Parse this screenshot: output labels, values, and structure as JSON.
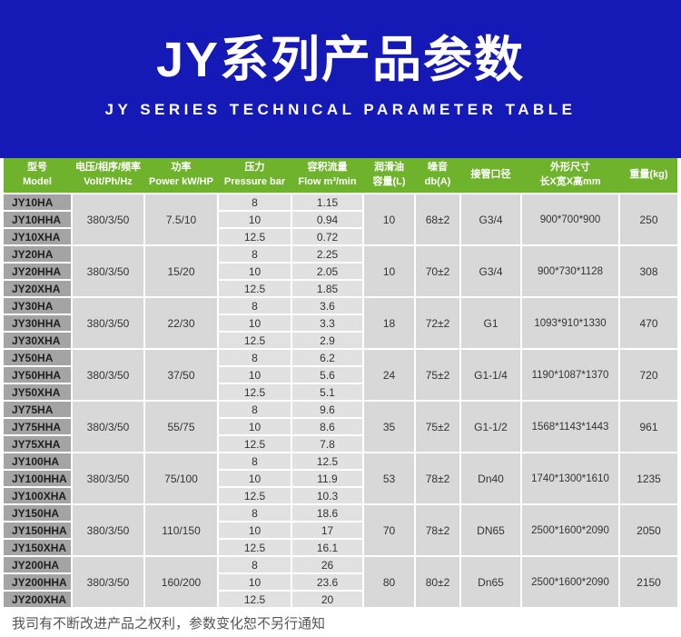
{
  "hero": {
    "title": "JY系列产品参数",
    "subtitle": "JY SERIES TECHNICAL PARAMETER TABLE",
    "bg_color": "#1519b5"
  },
  "table": {
    "header_color": "#6fb32d",
    "columns": [
      {
        "zh": "型号",
        "en": "Model"
      },
      {
        "zh": "电压/相序/频率",
        "en": "Volt/Ph/Hz"
      },
      {
        "zh": "功率",
        "en": "Power kW/HP"
      },
      {
        "zh": "压力",
        "en": "Pressure bar"
      },
      {
        "zh": "容积流量",
        "en": "Flow m³/min"
      },
      {
        "zh": "润滑油",
        "en": "容量(L)"
      },
      {
        "zh": "噪音",
        "en": "db(A)"
      },
      {
        "zh": "接管口径",
        "en": ""
      },
      {
        "zh": "外形尺寸",
        "en": "长X宽X高mm"
      },
      {
        "zh": "重量(kg)",
        "en": ""
      }
    ],
    "groups": [
      {
        "models": [
          "JY10HA",
          "JY10HHA",
          "JY10XHA"
        ],
        "volt": "380/3/50",
        "power": "7.5/10",
        "pressure": [
          "8",
          "10",
          "12.5"
        ],
        "flow": [
          "1.15",
          "0.94",
          "0.72"
        ],
        "oil": "10",
        "noise": "68±2",
        "port": "G3/4",
        "dims": "900*700*900",
        "weight": "250"
      },
      {
        "models": [
          "JY20HA",
          "JY20HHA",
          "JY20XHA"
        ],
        "volt": "380/3/50",
        "power": "15/20",
        "pressure": [
          "8",
          "10",
          "12.5"
        ],
        "flow": [
          "2.25",
          "2.05",
          "1.85"
        ],
        "oil": "10",
        "noise": "70±2",
        "port": "G3/4",
        "dims": "900*730*1128",
        "weight": "308"
      },
      {
        "models": [
          "JY30HA",
          "JY30HHA",
          "JY30XHA"
        ],
        "volt": "380/3/50",
        "power": "22/30",
        "pressure": [
          "8",
          "10",
          "12.5"
        ],
        "flow": [
          "3.6",
          "3.3",
          "2.9"
        ],
        "oil": "18",
        "noise": "72±2",
        "port": "G1",
        "dims": "1093*910*1330",
        "weight": "470"
      },
      {
        "models": [
          "JY50HA",
          "JY50HHA",
          "JY50XHA"
        ],
        "volt": "380/3/50",
        "power": "37/50",
        "pressure": [
          "8",
          "10",
          "12.5"
        ],
        "flow": [
          "6.2",
          "5.6",
          "5.1"
        ],
        "oil": "24",
        "noise": "75±2",
        "port": "G1-1/4",
        "dims": "1190*1087*1370",
        "weight": "720"
      },
      {
        "models": [
          "JY75HA",
          "JY75HHA",
          "JY75XHA"
        ],
        "volt": "380/3/50",
        "power": "55/75",
        "pressure": [
          "8",
          "10",
          "12.5"
        ],
        "flow": [
          "9.6",
          "8.6",
          "7.8"
        ],
        "oil": "35",
        "noise": "75±2",
        "port": "G1-1/2",
        "dims": "1568*1143*1443",
        "weight": "961"
      },
      {
        "models": [
          "JY100HA",
          "JY100HHA",
          "JY100XHA"
        ],
        "volt": "380/3/50",
        "power": "75/100",
        "pressure": [
          "8",
          "10",
          "12.5"
        ],
        "flow": [
          "12.5",
          "11.9",
          "10.3"
        ],
        "oil": "53",
        "noise": "78±2",
        "port": "Dn40",
        "dims": "1740*1300*1610",
        "weight": "1235"
      },
      {
        "models": [
          "JY150HA",
          "JY150HHA",
          "JY150XHA"
        ],
        "volt": "380/3/50",
        "power": "110/150",
        "pressure": [
          "8",
          "10",
          "12.5"
        ],
        "flow": [
          "18.6",
          "17",
          "16.1"
        ],
        "oil": "70",
        "noise": "78±2",
        "port": "DN65",
        "dims": "2500*1600*2090",
        "weight": "2050"
      },
      {
        "models": [
          "JY200HA",
          "JY200HHA",
          "JY200XHA"
        ],
        "volt": "380/3/50",
        "power": "160/200",
        "pressure": [
          "8",
          "10",
          "12.5"
        ],
        "flow": [
          "26",
          "23.6",
          "20"
        ],
        "oil": "80",
        "noise": "80±2",
        "port": "Dn65",
        "dims": "2500*1600*2090",
        "weight": "2150"
      }
    ]
  },
  "footer": {
    "note": "我司有不断改进产品之权利，参数变化恕不另行通知"
  }
}
